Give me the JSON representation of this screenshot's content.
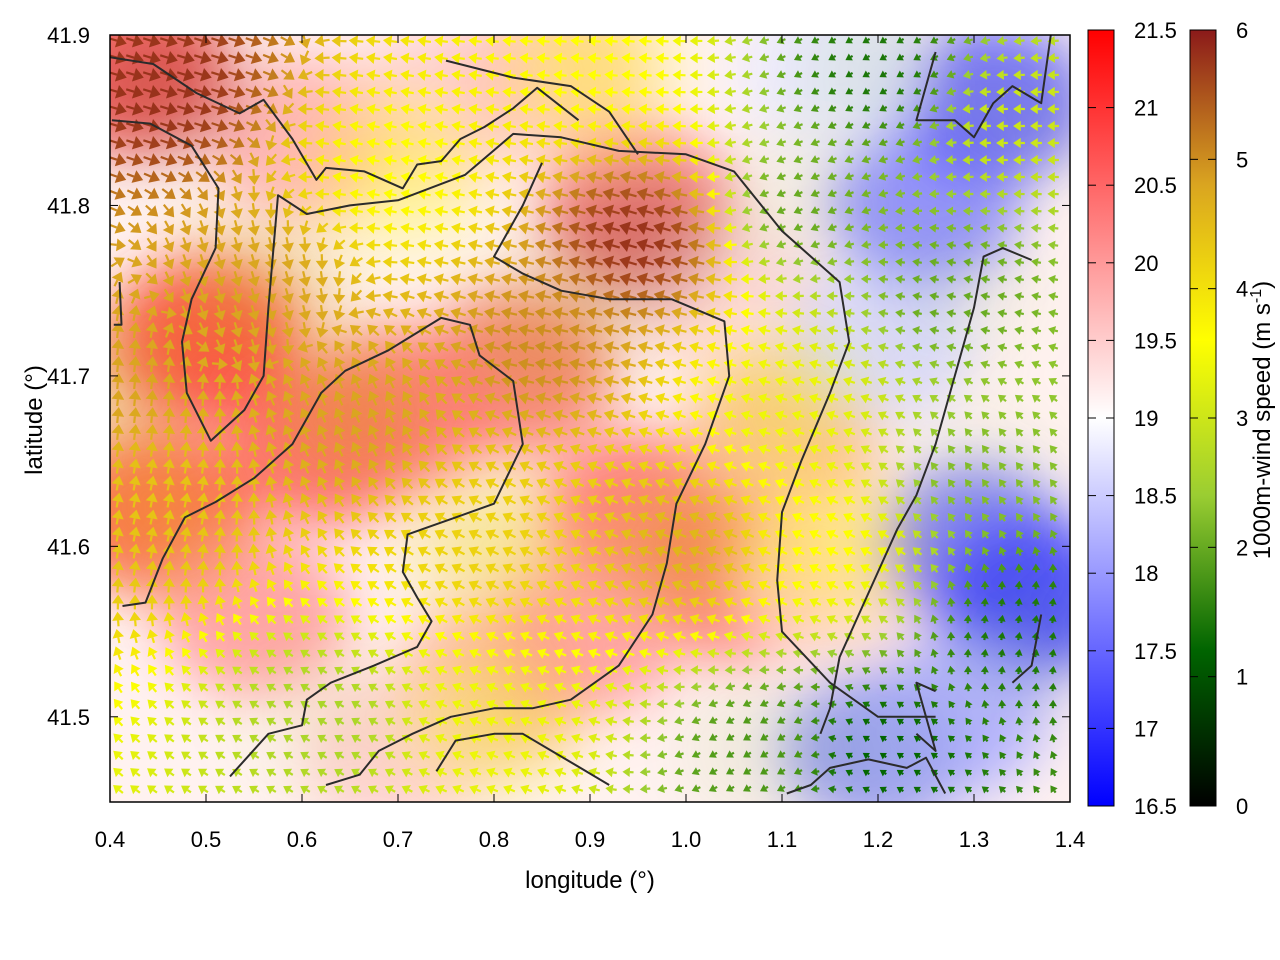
{
  "chart_data": {
    "type": "heatmap",
    "title": "",
    "xlabel": "longitude (°)",
    "ylabel": "latitude (°)",
    "xlim": [
      0.4,
      1.4
    ],
    "ylim": [
      41.45,
      41.9
    ],
    "x_ticks": [
      "0.4",
      "0.5",
      "0.6",
      "0.7",
      "0.8",
      "0.9",
      "1.0",
      "1.1",
      "1.2",
      "1.3",
      "1.4"
    ],
    "y_ticks": [
      "41.5",
      "41.6",
      "41.7",
      "41.8",
      "41.9"
    ],
    "grid": false,
    "temperature_colorbar": {
      "range": [
        16.5,
        21.5
      ],
      "ticks": [
        "16.5",
        "17",
        "17.5",
        "18",
        "18.5",
        "19",
        "19.5",
        "20",
        "20.5",
        "21",
        "21.5"
      ],
      "colors": [
        "#0000ff",
        "#ffffff",
        "#ff0000"
      ]
    },
    "wind_colorbar": {
      "label_main": "1000m-wind speed (m s",
      "label_sup": "-1",
      "label_end": ")",
      "range": [
        0,
        6
      ],
      "ticks": [
        "0",
        "1",
        "2",
        "3",
        "4",
        "5",
        "6"
      ],
      "colors": [
        "#000000",
        "#006400",
        "#9acd32",
        "#ffff00",
        "#daa520",
        "#8b1a1a"
      ]
    },
    "temperature_regions": [
      {
        "lon": 0.5,
        "lat": 41.72,
        "value": 21.0
      },
      {
        "lon": 0.45,
        "lat": 41.62,
        "value": 20.8
      },
      {
        "lon": 0.62,
        "lat": 41.66,
        "value": 20.6
      },
      {
        "lon": 0.7,
        "lat": 41.68,
        "value": 20.4
      },
      {
        "lon": 0.82,
        "lat": 41.7,
        "value": 20.3
      },
      {
        "lon": 0.95,
        "lat": 41.62,
        "value": 20.4
      },
      {
        "lon": 0.6,
        "lat": 41.84,
        "value": 19.8
      },
      {
        "lon": 0.95,
        "lat": 41.8,
        "value": 20.2
      },
      {
        "lon": 0.55,
        "lat": 41.56,
        "value": 20.0
      },
      {
        "lon": 1.06,
        "lat": 41.58,
        "value": 20.4
      },
      {
        "lon": 0.8,
        "lat": 41.52,
        "value": 19.8
      },
      {
        "lon": 0.9,
        "lat": 41.55,
        "value": 20.0
      },
      {
        "lon": 0.7,
        "lat": 41.48,
        "value": 19.5
      },
      {
        "lon": 1.05,
        "lat": 41.74,
        "value": 19.4
      },
      {
        "lon": 0.75,
        "lat": 41.86,
        "value": 19.5
      },
      {
        "lon": 1.1,
        "lat": 41.66,
        "value": 19.8
      },
      {
        "lon": 1.15,
        "lat": 41.58,
        "value": 19.4
      },
      {
        "lon": 1.2,
        "lat": 41.72,
        "value": 18.6
      },
      {
        "lon": 1.25,
        "lat": 41.8,
        "value": 17.8
      },
      {
        "lon": 1.3,
        "lat": 41.6,
        "value": 17.6
      },
      {
        "lon": 1.32,
        "lat": 41.86,
        "value": 17.4
      },
      {
        "lon": 1.36,
        "lat": 41.57,
        "value": 17.2
      },
      {
        "lon": 1.2,
        "lat": 41.48,
        "value": 18.0
      },
      {
        "lon": 1.28,
        "lat": 41.5,
        "value": 18.2
      },
      {
        "lon": 0.42,
        "lat": 41.88,
        "value": 20.6
      },
      {
        "lon": 1.15,
        "lat": 41.88,
        "value": 18.8
      },
      {
        "lon": 0.86,
        "lat": 41.88,
        "value": 19.6
      }
    ],
    "wind_regions": [
      {
        "lon": 0.45,
        "lat": 41.87,
        "speed": 5.8,
        "dir": [
          1,
          -0.3
        ]
      },
      {
        "lon": 0.55,
        "lat": 41.75,
        "speed": 4.8,
        "dir": [
          0.3,
          -1
        ]
      },
      {
        "lon": 0.45,
        "lat": 41.62,
        "speed": 4.4,
        "dir": [
          0.2,
          1
        ]
      },
      {
        "lon": 0.65,
        "lat": 41.68,
        "speed": 4.8,
        "dir": [
          -0.4,
          0.9
        ]
      },
      {
        "lon": 0.85,
        "lat": 41.72,
        "speed": 5.0,
        "dir": [
          -1,
          0.2
        ]
      },
      {
        "lon": 0.95,
        "lat": 41.78,
        "speed": 5.8,
        "dir": [
          -1,
          0.3
        ]
      },
      {
        "lon": 0.8,
        "lat": 41.6,
        "speed": 4.2,
        "dir": [
          -1,
          0.5
        ]
      },
      {
        "lon": 1.0,
        "lat": 41.6,
        "speed": 4.6,
        "dir": [
          -1,
          0.4
        ]
      },
      {
        "lon": 0.7,
        "lat": 41.82,
        "speed": 3.6,
        "dir": [
          -1,
          0.2
        ]
      },
      {
        "lon": 0.62,
        "lat": 41.5,
        "speed": 2.6,
        "dir": [
          -1,
          0.6
        ]
      },
      {
        "lon": 0.8,
        "lat": 41.5,
        "speed": 3.4,
        "dir": [
          -1,
          0.4
        ]
      },
      {
        "lon": 1.1,
        "lat": 41.68,
        "speed": 3.4,
        "dir": [
          -1,
          0.3
        ]
      },
      {
        "lon": 1.15,
        "lat": 41.6,
        "speed": 3.6,
        "dir": [
          -1,
          0.5
        ]
      },
      {
        "lon": 1.12,
        "lat": 41.8,
        "speed": 2.0,
        "dir": [
          -0.9,
          -0.4
        ]
      },
      {
        "lon": 1.2,
        "lat": 41.88,
        "speed": 1.4,
        "dir": [
          -1,
          -0.6
        ]
      },
      {
        "lon": 1.28,
        "lat": 41.75,
        "speed": 2.0,
        "dir": [
          -1,
          0.2
        ]
      },
      {
        "lon": 1.3,
        "lat": 41.64,
        "speed": 2.2,
        "dir": [
          -0.6,
          0.8
        ]
      },
      {
        "lon": 1.35,
        "lat": 41.55,
        "speed": 1.4,
        "dir": [
          0.2,
          1
        ]
      },
      {
        "lon": 1.2,
        "lat": 41.48,
        "speed": 1.2,
        "dir": [
          -0.6,
          0.4
        ]
      },
      {
        "lon": 1.08,
        "lat": 41.48,
        "speed": 1.8,
        "dir": [
          -0.8,
          -0.5
        ]
      },
      {
        "lon": 1.35,
        "lat": 41.85,
        "speed": 3.0,
        "dir": [
          -1,
          0
        ]
      },
      {
        "lon": 0.4,
        "lat": 41.7,
        "speed": 4.8,
        "dir": [
          0.1,
          1
        ]
      },
      {
        "lon": 0.9,
        "lat": 41.88,
        "speed": 3.6,
        "dir": [
          -1,
          0.1
        ]
      }
    ],
    "contour_lines": [
      [
        [
          0.4,
          41.887
        ],
        [
          0.445,
          41.883
        ],
        [
          0.49,
          41.866
        ],
        [
          0.535,
          41.854
        ],
        [
          0.56,
          41.862
        ],
        [
          0.59,
          41.839
        ],
        [
          0.615,
          41.815
        ],
        [
          0.625,
          41.822
        ],
        [
          0.665,
          41.82
        ],
        [
          0.705,
          41.81
        ],
        [
          0.72,
          41.824
        ],
        [
          0.745,
          41.826
        ],
        [
          0.765,
          41.839
        ],
        [
          0.79,
          41.846
        ],
        [
          0.82,
          41.857
        ],
        [
          0.845,
          41.869
        ],
        [
          0.888,
          41.85
        ]
      ],
      [
        [
          0.402,
          41.85
        ],
        [
          0.442,
          41.848
        ],
        [
          0.485,
          41.835
        ],
        [
          0.513,
          41.81
        ],
        [
          0.51,
          41.775
        ],
        [
          0.485,
          41.745
        ],
        [
          0.475,
          41.72
        ],
        [
          0.48,
          41.69
        ],
        [
          0.505,
          41.662
        ],
        [
          0.54,
          41.68
        ],
        [
          0.56,
          41.7
        ],
        [
          0.565,
          41.74
        ],
        [
          0.575,
          41.806
        ],
        [
          0.605,
          41.795
        ],
        [
          0.65,
          41.8
        ],
        [
          0.7,
          41.803
        ],
        [
          0.77,
          41.818
        ],
        [
          0.82,
          41.842
        ],
        [
          0.87,
          41.84
        ],
        [
          0.93,
          41.832
        ],
        [
          1.0,
          41.83
        ],
        [
          1.05,
          41.82
        ],
        [
          1.1,
          41.785
        ],
        [
          1.16,
          41.755
        ],
        [
          1.17,
          41.72
        ],
        [
          1.15,
          41.69
        ],
        [
          1.12,
          41.65
        ],
        [
          1.1,
          41.62
        ],
        [
          1.095,
          41.58
        ],
        [
          1.1,
          41.55
        ],
        [
          1.15,
          41.52
        ],
        [
          1.2,
          41.5
        ],
        [
          1.26,
          41.5
        ]
      ],
      [
        [
          0.413,
          41.565
        ],
        [
          0.437,
          41.567
        ],
        [
          0.455,
          41.593
        ],
        [
          0.478,
          41.617
        ],
        [
          0.51,
          41.626
        ],
        [
          0.55,
          41.64
        ],
        [
          0.59,
          41.66
        ],
        [
          0.62,
          41.69
        ],
        [
          0.645,
          41.703
        ],
        [
          0.69,
          41.715
        ],
        [
          0.745,
          41.734
        ],
        [
          0.775,
          41.73
        ],
        [
          0.785,
          41.712
        ],
        [
          0.82,
          41.697
        ],
        [
          0.83,
          41.66
        ],
        [
          0.8,
          41.625
        ],
        [
          0.76,
          41.617
        ],
        [
          0.71,
          41.607
        ],
        [
          0.705,
          41.585
        ],
        [
          0.72,
          41.57
        ],
        [
          0.735,
          41.556
        ],
        [
          0.72,
          41.541
        ],
        [
          0.675,
          41.53
        ],
        [
          0.63,
          41.52
        ],
        [
          0.605,
          41.51
        ],
        [
          0.6,
          41.495
        ],
        [
          0.565,
          41.49
        ],
        [
          0.525,
          41.465
        ]
      ],
      [
        [
          0.85,
          41.825
        ],
        [
          0.83,
          41.8
        ],
        [
          0.81,
          41.78
        ],
        [
          0.8,
          41.77
        ],
        [
          0.83,
          41.76
        ],
        [
          0.87,
          41.75
        ],
        [
          0.92,
          41.745
        ],
        [
          0.985,
          41.745
        ],
        [
          1.04,
          41.732
        ],
        [
          1.045,
          41.7
        ],
        [
          1.02,
          41.66
        ],
        [
          0.99,
          41.625
        ],
        [
          0.98,
          41.59
        ],
        [
          0.965,
          41.56
        ],
        [
          0.93,
          41.53
        ],
        [
          0.88,
          41.51
        ],
        [
          0.84,
          41.505
        ],
        [
          0.8,
          41.505
        ],
        [
          0.755,
          41.5
        ],
        [
          0.715,
          41.49
        ],
        [
          0.68,
          41.48
        ],
        [
          0.66,
          41.466
        ],
        [
          0.625,
          41.46
        ]
      ],
      [
        [
          0.74,
          41.468
        ],
        [
          0.76,
          41.486
        ],
        [
          0.8,
          41.49
        ],
        [
          0.83,
          41.49
        ],
        [
          0.86,
          41.48
        ],
        [
          0.89,
          41.47
        ],
        [
          0.92,
          41.46
        ]
      ],
      [
        [
          1.105,
          41.455
        ],
        [
          1.13,
          41.46
        ],
        [
          1.15,
          41.47
        ],
        [
          1.19,
          41.475
        ],
        [
          1.23,
          41.47
        ],
        [
          1.25,
          41.476
        ],
        [
          1.27,
          41.455
        ]
      ],
      [
        [
          1.26,
          41.89
        ],
        [
          1.25,
          41.87
        ],
        [
          1.24,
          41.85
        ],
        [
          1.28,
          41.85
        ],
        [
          1.3,
          41.84
        ],
        [
          1.32,
          41.86
        ],
        [
          1.34,
          41.87
        ],
        [
          1.37,
          41.86
        ],
        [
          1.38,
          41.9
        ]
      ],
      [
        [
          1.36,
          41.768
        ],
        [
          1.33,
          41.775
        ],
        [
          1.31,
          41.77
        ],
        [
          1.3,
          41.74
        ],
        [
          1.28,
          41.7
        ],
        [
          1.26,
          41.66
        ],
        [
          1.24,
          41.63
        ],
        [
          1.22,
          41.61
        ],
        [
          1.2,
          41.585
        ],
        [
          1.18,
          41.56
        ],
        [
          1.16,
          41.535
        ],
        [
          1.15,
          41.505
        ],
        [
          1.14,
          41.49
        ]
      ],
      [
        [
          0.41,
          41.755
        ],
        [
          0.412,
          41.73
        ],
        [
          0.404,
          41.73
        ]
      ],
      [
        [
          0.75,
          41.885
        ],
        [
          0.82,
          41.875
        ],
        [
          0.88,
          41.87
        ],
        [
          0.92,
          41.855
        ],
        [
          0.95,
          41.83
        ]
      ],
      [
        [
          1.24,
          41.49
        ],
        [
          1.26,
          41.48
        ],
        [
          1.25,
          41.5
        ],
        [
          1.24,
          41.52
        ],
        [
          1.26,
          41.515
        ]
      ],
      [
        [
          1.34,
          41.52
        ],
        [
          1.36,
          41.53
        ],
        [
          1.37,
          41.56
        ]
      ]
    ]
  }
}
